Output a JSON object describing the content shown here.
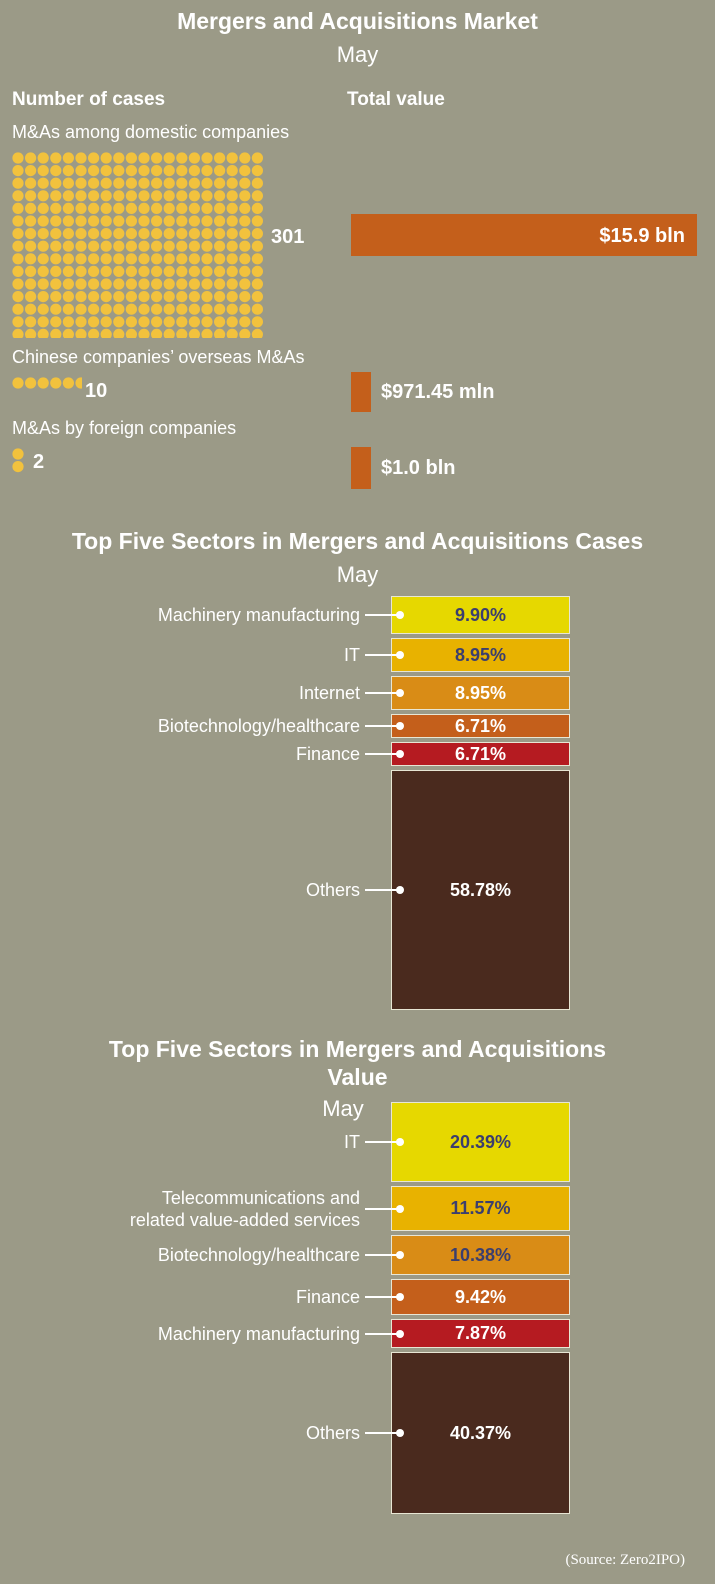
{
  "market": {
    "title": "Mergers and Acquisitions Market",
    "subtitle": "May",
    "cases_header": "Number of cases",
    "value_header": "Total value",
    "rows": [
      {
        "label": "M&As among domestic companies",
        "count_label": "301",
        "count": 301,
        "value_label": "$15.9 bln",
        "value_mln": 15900
      },
      {
        "label": "Chinese companies’ overseas M&As",
        "count_label": "10",
        "count": 10,
        "value_label": "$971.45 mln",
        "value_mln": 971.45
      },
      {
        "label": "M&As by foreign companies",
        "count_label": "2",
        "count": 2,
        "value_label": "$1.0 bln",
        "value_mln": 1000
      }
    ],
    "dot_color": "#f2c23d",
    "bar_color": "#c45f1b"
  },
  "cases": {
    "title": "Top Five Sectors in Mergers and Acquisitions Cases",
    "subtitle": "May"
  },
  "value": {
    "title_line1": "Top Five Sectors in Mergers and Acquisitions",
    "title_line2": "Value",
    "subtitle": "May"
  },
  "source": "(Source: Zero2IPO)",
  "chart_data": [
    {
      "type": "bar",
      "title": "Mergers and Acquisitions Market",
      "subtitle": "May",
      "categories": [
        "M&As among domestic companies",
        "Chinese companies’ overseas M&As",
        "M&As by foreign companies"
      ],
      "series": [
        {
          "name": "Number of cases",
          "values": [
            301,
            10,
            2
          ]
        },
        {
          "name": "Total value",
          "values": [
            15.9,
            0.97145,
            1.0
          ],
          "labels": [
            "$15.9 bln",
            "$971.45 mln",
            "$1.0 bln"
          ]
        }
      ]
    },
    {
      "type": "bar",
      "title": "Top Five Sectors in Mergers and Acquisitions Cases",
      "subtitle": "May",
      "categories": [
        "Machinery manufacturing",
        "IT",
        "Internet",
        "Biotechnology/healthcare",
        "Finance",
        "Others"
      ],
      "values": [
        9.9,
        8.95,
        8.95,
        6.71,
        6.71,
        58.78
      ],
      "labels": [
        "9.90%",
        "8.95%",
        "8.95%",
        "6.71%",
        "6.71%",
        "58.78%"
      ],
      "colors": [
        "#e6d800",
        "#e8b200",
        "#d98c16",
        "#c45f1b",
        "#b51b21",
        "#4a2a1e"
      ],
      "text_colors": [
        "#3b3e6e",
        "#3b3e6e",
        "#ffffff",
        "#ffffff",
        "#ffffff",
        "#ffffff"
      ]
    },
    {
      "type": "bar",
      "title": "Top Five Sectors in Mergers and Acquisitions Value",
      "subtitle": "May",
      "categories": [
        "IT",
        "Telecommunications and related value-added services",
        "Biotechnology/healthcare",
        "Finance",
        "Machinery manufacturing",
        "Others"
      ],
      "label_lines": [
        [
          "IT"
        ],
        [
          "Telecommunications and",
          "related value-added services"
        ],
        [
          "Biotechnology/healthcare"
        ],
        [
          "Finance"
        ],
        [
          "Machinery manufacturing"
        ],
        [
          "Others"
        ]
      ],
      "values": [
        20.39,
        11.57,
        10.38,
        9.42,
        7.87,
        40.37
      ],
      "labels": [
        "20.39%",
        "11.57%",
        "10.38%",
        "9.42%",
        "7.87%",
        "40.37%"
      ],
      "colors": [
        "#e6d800",
        "#e8b200",
        "#d98c16",
        "#c45f1b",
        "#b51b21",
        "#4a2a1e"
      ],
      "text_colors": [
        "#3b3e6e",
        "#3b3e6e",
        "#3b3e6e",
        "#ffffff",
        "#ffffff",
        "#ffffff"
      ]
    }
  ]
}
